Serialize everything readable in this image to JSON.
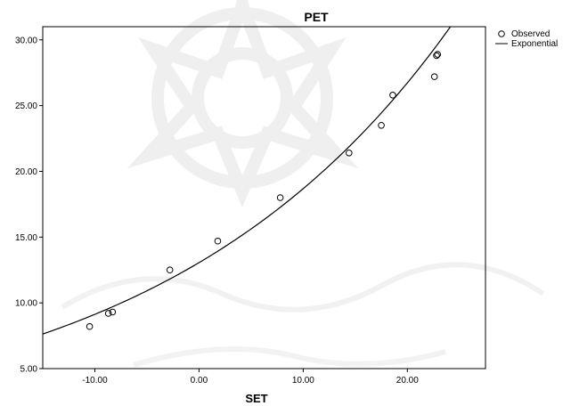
{
  "chart_data": {
    "type": "scatter",
    "title": "PET",
    "xlabel": "SET",
    "ylabel": "",
    "xlim": [
      -15,
      27.5
    ],
    "ylim": [
      5,
      31
    ],
    "xticks": [
      -10,
      0,
      10,
      20
    ],
    "xtick_labels": [
      "-10.00",
      "0.00",
      "10.00",
      "20.00"
    ],
    "yticks": [
      5,
      10,
      15,
      20,
      25,
      30
    ],
    "ytick_labels": [
      "5.00",
      "10.00",
      "15.00",
      "20.00",
      "25.00",
      "30.00"
    ],
    "grid": false,
    "legend_position": "top-right",
    "series": [
      {
        "name": "Observed",
        "kind": "points",
        "x": [
          -10.5,
          -8.7,
          -8.3,
          -2.8,
          1.8,
          7.8,
          14.4,
          17.5,
          18.6,
          22.6,
          22.8,
          22.9
        ],
        "y": [
          8.2,
          9.2,
          9.3,
          12.5,
          14.7,
          18.0,
          21.4,
          23.5,
          25.8,
          27.2,
          28.8,
          28.9
        ]
      },
      {
        "name": "Exponential",
        "kind": "curve",
        "x": [
          -15,
          -10,
          -5,
          0,
          5,
          10,
          15,
          20,
          25.3
        ],
        "y": [
          7.5,
          8.9,
          10.9,
          13.5,
          16.0,
          19.0,
          22.5,
          26.6,
          31.3
        ]
      }
    ],
    "colors": {
      "axis": "#000000",
      "curve": "#000000",
      "points": "#000000",
      "background": "#ffffff"
    }
  }
}
